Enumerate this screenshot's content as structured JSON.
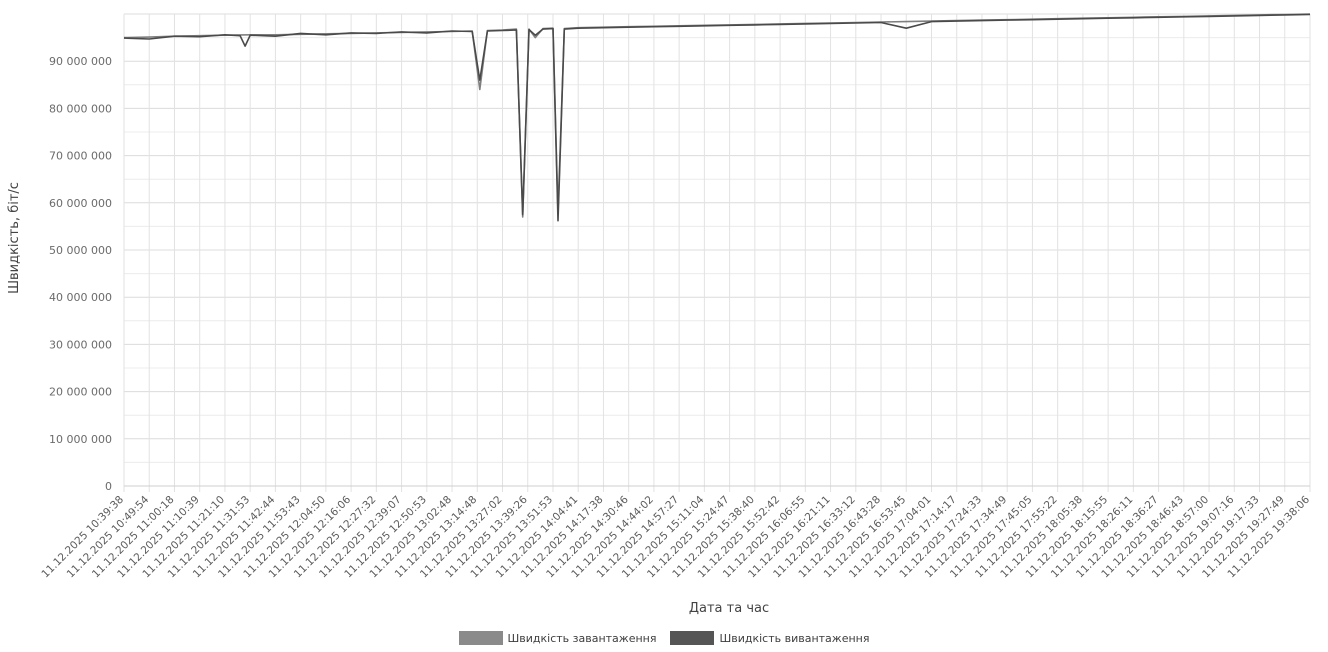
{
  "chart_data": {
    "type": "line",
    "xlabel": "Дата та час",
    "ylabel": "Швидкість, біт/с",
    "ylim": [
      0,
      100000000
    ],
    "y_ticks": [
      "0",
      "10 000 000",
      "20 000 000",
      "30 000 000",
      "40 000 000",
      "50 000 000",
      "60 000 000",
      "70 000 000",
      "80 000 000",
      "90 000 000"
    ],
    "categories": [
      "11.12.2025 10:39:38",
      "11.12.2025 10:49:54",
      "11.12.2025 11:00:18",
      "11.12.2025 11:10:39",
      "11.12.2025 11:21:10",
      "11.12.2025 11:31:53",
      "11.12.2025 11:42:44",
      "11.12.2025 11:53:43",
      "11.12.2025 12:04:50",
      "11.12.2025 12:16:06",
      "11.12.2025 12:27:32",
      "11.12.2025 12:39:07",
      "11.12.2025 12:50:53",
      "11.12.2025 13:02:48",
      "11.12.2025 13:14:48",
      "11.12.2025 13:27:02",
      "11.12.2025 13:39:26",
      "11.12.2025 13:51:53",
      "11.12.2025 14:04:41",
      "11.12.2025 14:17:38",
      "11.12.2025 14:30:46",
      "11.12.2025 14:44:02",
      "11.12.2025 14:57:27",
      "11.12.2025 15:11:04",
      "11.12.2025 15:24:47",
      "11.12.2025 15:38:40",
      "11.12.2025 15:52:42",
      "11.12.2025 16:06:55",
      "11.12.2025 16:21:11",
      "11.12.2025 16:33:12",
      "11.12.2025 16:43:28",
      "11.12.2025 16:53:45",
      "11.12.2025 17:04:01",
      "11.12.2025 17:14:17",
      "11.12.2025 17:24:33",
      "11.12.2025 17:34:49",
      "11.12.2025 17:45:05",
      "11.12.2025 17:55:22",
      "11.12.2025 18:05:38",
      "11.12.2025 18:15:55",
      "11.12.2025 18:26:11",
      "11.12.2025 18:36:27",
      "11.12.2025 18:46:43",
      "11.12.2025 18:57:00",
      "11.12.2025 19:07:16",
      "11.12.2025 19:17:33",
      "11.12.2025 19:27:49",
      "11.12.2025 19:38:06"
    ],
    "series": [
      {
        "name": "Швидкість завантаження",
        "color": "#7f7f7f",
        "points": [
          [
            0,
            95000000
          ],
          [
            1,
            95100000
          ],
          [
            2,
            95300000
          ],
          [
            3,
            95400000
          ],
          [
            4,
            95500000
          ],
          [
            5,
            95600000
          ],
          [
            6,
            95600000
          ],
          [
            7,
            95700000
          ],
          [
            8,
            95800000
          ],
          [
            9,
            95900000
          ],
          [
            10,
            96000000
          ],
          [
            11,
            96100000
          ],
          [
            12,
            96200000
          ],
          [
            13,
            96300000
          ],
          [
            13.8,
            96400000
          ],
          [
            14.1,
            84000000
          ],
          [
            14.4,
            96500000
          ],
          [
            15,
            96600000
          ],
          [
            15.55,
            96800000
          ],
          [
            15.8,
            57000000
          ],
          [
            16.05,
            96800000
          ],
          [
            16.3,
            95000000
          ],
          [
            16.6,
            96900000
          ],
          [
            17,
            97000000
          ],
          [
            17.2,
            58000000
          ],
          [
            17.45,
            96900000
          ],
          [
            18,
            97100000
          ],
          [
            19,
            97200000
          ],
          [
            20,
            97300000
          ],
          [
            21,
            97400000
          ],
          [
            22,
            97500000
          ],
          [
            23,
            97600000
          ],
          [
            24,
            97700000
          ],
          [
            25,
            97800000
          ],
          [
            26,
            97900000
          ],
          [
            27,
            98000000
          ],
          [
            28,
            98100000
          ],
          [
            29,
            98200000
          ],
          [
            30,
            98300000
          ],
          [
            31,
            98400000
          ],
          [
            32,
            98500000
          ],
          [
            33,
            98600000
          ],
          [
            34,
            98700000
          ],
          [
            35,
            98800000
          ],
          [
            36,
            98900000
          ],
          [
            37,
            99000000
          ],
          [
            38,
            99100000
          ],
          [
            39,
            99200000
          ],
          [
            40,
            99300000
          ],
          [
            41,
            99400000
          ],
          [
            42,
            99500000
          ],
          [
            43,
            99600000
          ],
          [
            44,
            99700000
          ],
          [
            45,
            99800000
          ],
          [
            46,
            99900000
          ],
          [
            47,
            100000000
          ]
        ]
      },
      {
        "name": "Швидкість вивантаження",
        "color": "#4a4a4a",
        "points": [
          [
            0,
            94900000
          ],
          [
            1,
            94700000
          ],
          [
            2,
            95300000
          ],
          [
            3,
            95200000
          ],
          [
            4,
            95600000
          ],
          [
            4.6,
            95400000
          ],
          [
            4.8,
            93200000
          ],
          [
            5,
            95500000
          ],
          [
            6,
            95300000
          ],
          [
            7,
            95900000
          ],
          [
            8,
            95600000
          ],
          [
            9,
            96000000
          ],
          [
            10,
            95900000
          ],
          [
            11,
            96200000
          ],
          [
            12,
            96000000
          ],
          [
            13,
            96400000
          ],
          [
            13.8,
            96300000
          ],
          [
            14.1,
            86000000
          ],
          [
            14.4,
            96400000
          ],
          [
            15,
            96500000
          ],
          [
            15.55,
            96600000
          ],
          [
            15.8,
            57500000
          ],
          [
            16.05,
            96700000
          ],
          [
            16.3,
            95500000
          ],
          [
            16.6,
            96800000
          ],
          [
            17,
            96900000
          ],
          [
            17.2,
            56200000
          ],
          [
            17.45,
            96800000
          ],
          [
            18,
            97000000
          ],
          [
            19,
            97100000
          ],
          [
            20,
            97200000
          ],
          [
            21,
            97300000
          ],
          [
            22,
            97400000
          ],
          [
            23,
            97500000
          ],
          [
            24,
            97600000
          ],
          [
            25,
            97700000
          ],
          [
            26,
            97800000
          ],
          [
            27,
            97900000
          ],
          [
            28,
            98000000
          ],
          [
            29,
            98100000
          ],
          [
            30,
            98200000
          ],
          [
            31,
            97000000
          ],
          [
            32,
            98400000
          ],
          [
            33,
            98500000
          ],
          [
            34,
            98600000
          ],
          [
            35,
            98700000
          ],
          [
            36,
            98800000
          ],
          [
            37,
            98900000
          ],
          [
            38,
            99000000
          ],
          [
            39,
            99100000
          ],
          [
            40,
            99200000
          ],
          [
            41,
            99300000
          ],
          [
            42,
            99400000
          ],
          [
            43,
            99500000
          ],
          [
            44,
            99600000
          ],
          [
            45,
            99700000
          ],
          [
            46,
            99800000
          ],
          [
            47,
            99900000
          ]
        ]
      }
    ],
    "legend": [
      {
        "label": "Швидкість завантаження",
        "color": "#8a8a8a"
      },
      {
        "label": "Швидкість вивантаження",
        "color": "#555555"
      }
    ],
    "legend_position": "bottom",
    "grid": true
  }
}
